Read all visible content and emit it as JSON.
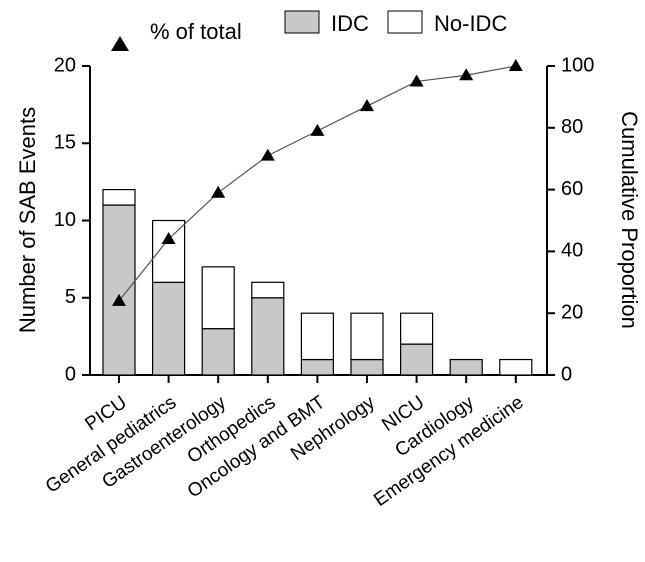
{
  "chart_data": {
    "type": "bar",
    "stacked": true,
    "categories": [
      "PICU",
      "General pediatrics",
      "Gastroenterology",
      "Orthopedics",
      "Oncology and BMT",
      "Nephrology",
      "NICU",
      "Cardiology",
      "Emergency medicine"
    ],
    "series": [
      {
        "name": "IDC",
        "type": "bar",
        "axis": "left",
        "color": "#c8c8c8",
        "values": [
          11,
          6,
          3,
          5,
          1,
          1,
          2,
          1,
          0
        ]
      },
      {
        "name": "No-IDC",
        "type": "bar",
        "axis": "left",
        "color": "#ffffff",
        "values": [
          1,
          4,
          4,
          1,
          3,
          3,
          2,
          0,
          1
        ]
      },
      {
        "name": "% of total",
        "type": "line",
        "axis": "right",
        "marker": "triangle",
        "values": [
          24,
          44,
          59,
          71,
          79,
          87,
          95,
          97,
          100
        ]
      }
    ],
    "ylabel": "Number of SAB Events",
    "y2label": "Cumulative Proportion",
    "ylim": [
      0,
      20
    ],
    "y2lim": [
      0,
      100
    ],
    "yticks": [
      "0",
      "5",
      "10",
      "15",
      "20"
    ],
    "y2ticks": [
      "0",
      "20",
      "40",
      "60",
      "80",
      "100"
    ],
    "legend": {
      "placement": "top",
      "entries": [
        "% of total",
        "IDC",
        "No-IDC"
      ]
    },
    "grid": false
  }
}
